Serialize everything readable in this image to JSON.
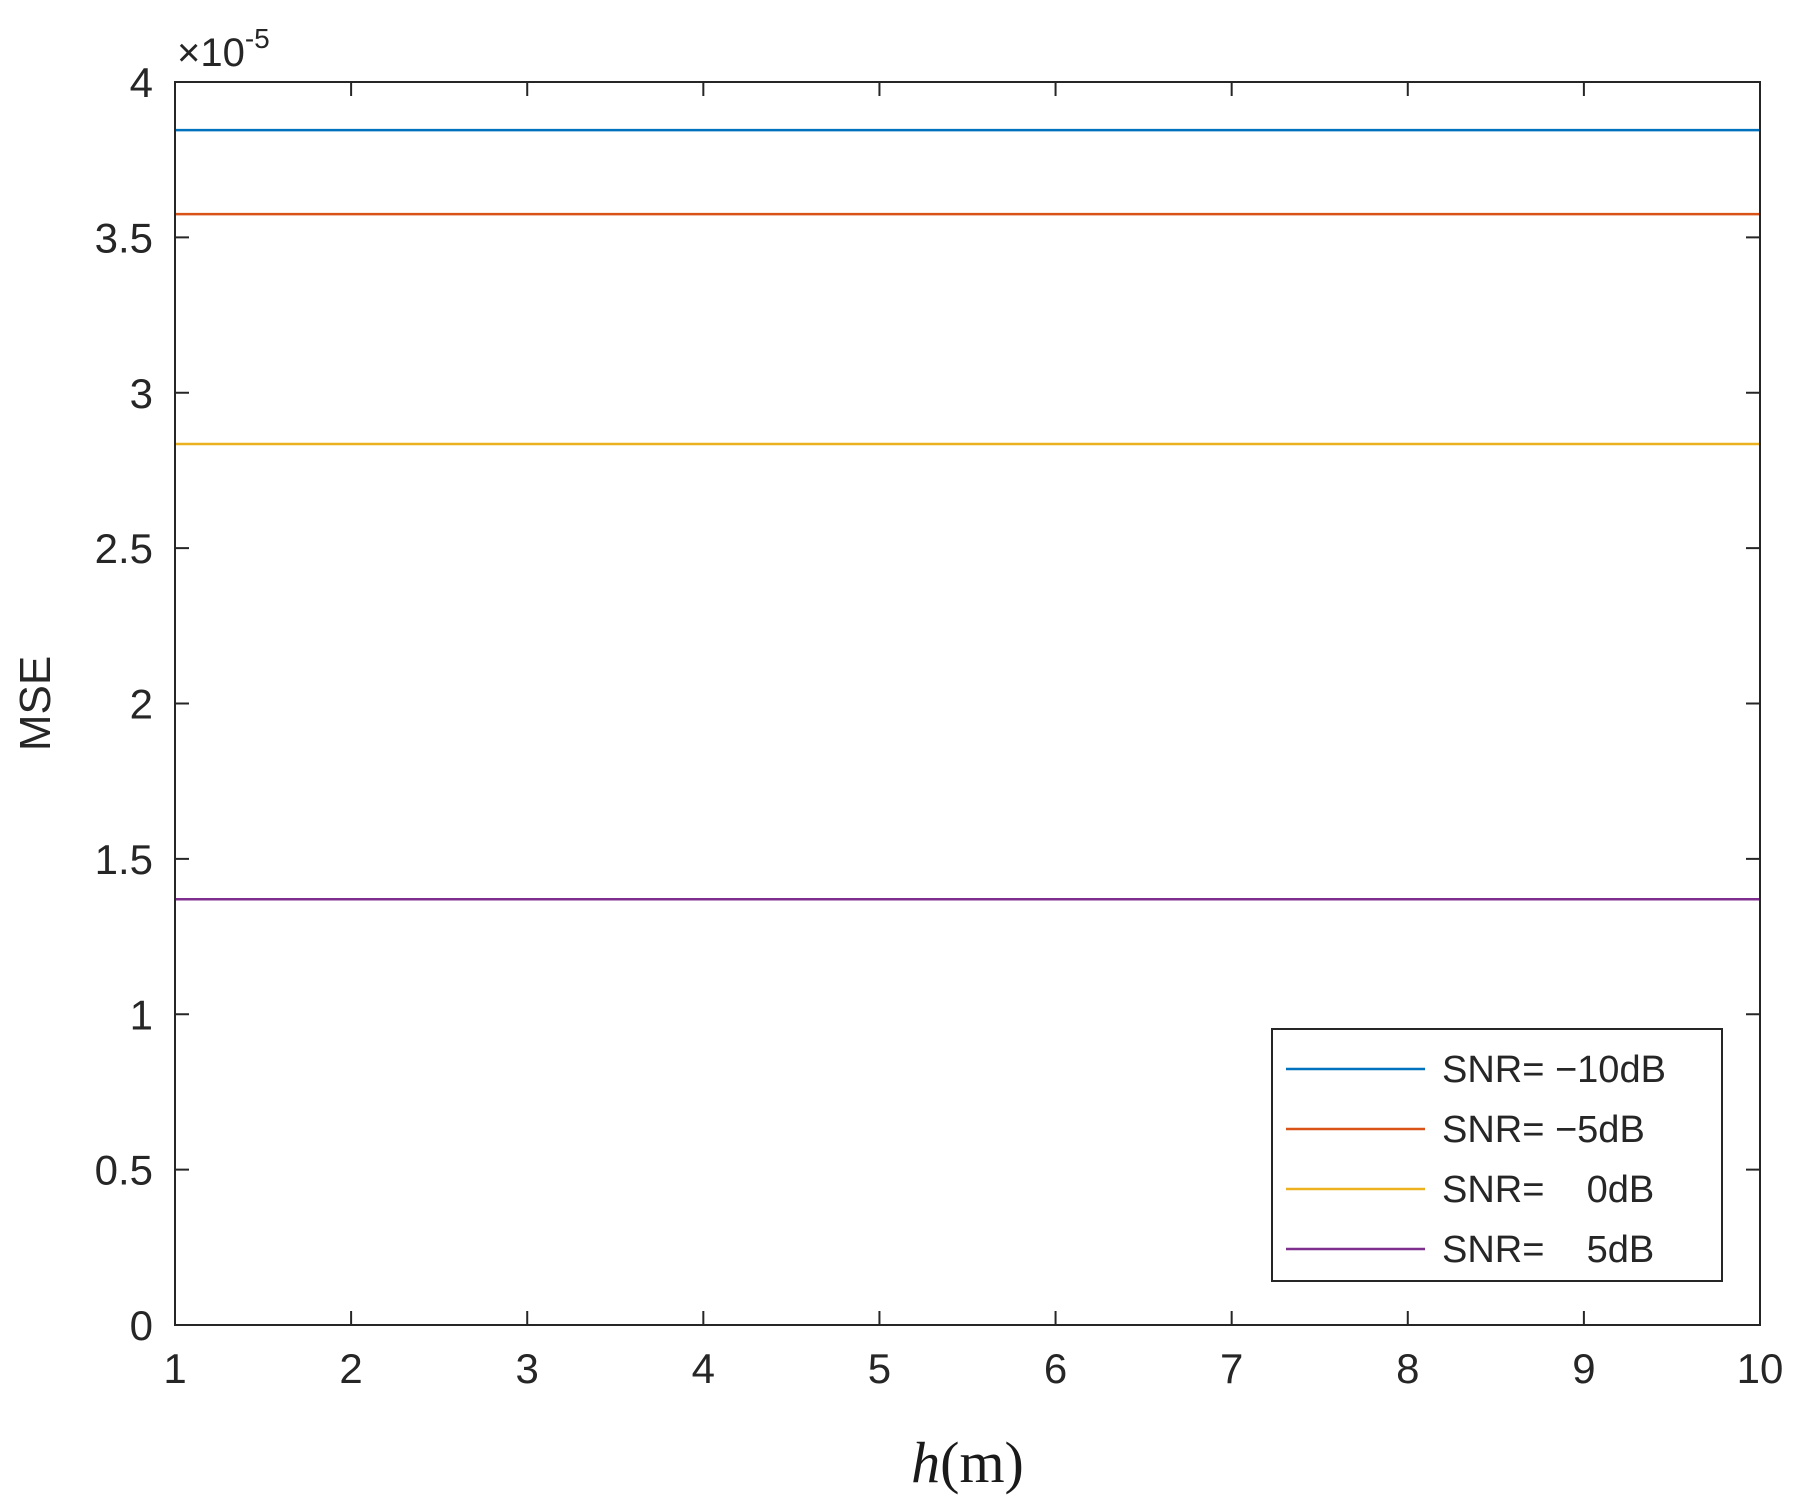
{
  "chart_data": {
    "type": "line",
    "title": "",
    "xlabel": {
      "variable": "h",
      "unit": "(m)"
    },
    "ylabel": "MSE",
    "y_exponent": {
      "prefix": "×10",
      "power": "-5"
    },
    "xlim": [
      1,
      10
    ],
    "ylim": [
      0,
      4
    ],
    "x_ticks": [
      1,
      2,
      3,
      4,
      5,
      6,
      7,
      8,
      9,
      10
    ],
    "x_tick_labels": [
      "1",
      "2",
      "3",
      "4",
      "5",
      "6",
      "7",
      "8",
      "9",
      "10"
    ],
    "y_ticks": [
      0,
      0.5,
      1,
      1.5,
      2,
      2.5,
      3,
      3.5,
      4
    ],
    "y_tick_labels": [
      "0",
      "0.5",
      "1",
      "1.5",
      "2",
      "2.5",
      "3",
      "3.5",
      "4"
    ],
    "grid": false,
    "legend_position": "bottom-right",
    "series": [
      {
        "name": "SNR= −10dB",
        "color": "#0072BD",
        "x": [
          1,
          10
        ],
        "y": [
          3.845,
          3.845
        ]
      },
      {
        "name": "SNR= −5dB",
        "color": "#D95319",
        "x": [
          1,
          10
        ],
        "y": [
          3.575,
          3.575
        ]
      },
      {
        "name": "SNR=    0dB",
        "color": "#EDB120",
        "x": [
          1,
          10
        ],
        "y": [
          2.835,
          2.835
        ]
      },
      {
        "name": "SNR=    5dB",
        "color": "#7E2F8E",
        "x": [
          1,
          10
        ],
        "y": [
          1.37,
          1.37
        ]
      }
    ]
  }
}
